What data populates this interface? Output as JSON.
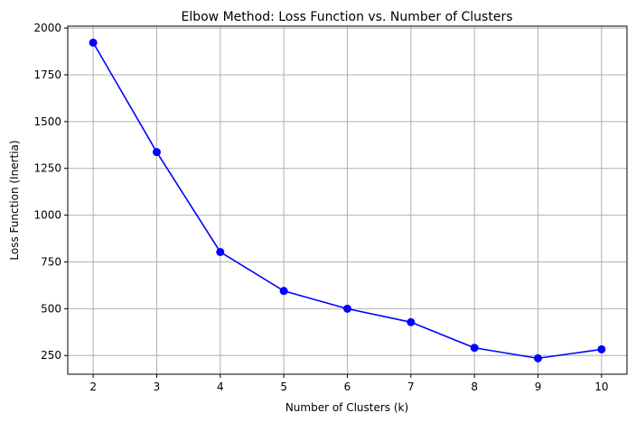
{
  "chart_data": {
    "type": "line",
    "title": "Elbow Method: Loss Function vs. Number of Clusters",
    "xlabel": "Number of Clusters (k)",
    "ylabel": "Loss Function (Inertia)",
    "x": [
      2,
      3,
      4,
      5,
      6,
      7,
      8,
      9,
      10
    ],
    "series": [
      {
        "values": [
          1922,
          1337,
          803,
          595,
          500,
          428,
          291,
          235,
          283
        ],
        "color": "#0000ff",
        "marker": "circle"
      }
    ],
    "xticks": [
      "2",
      "3",
      "4",
      "5",
      "6",
      "7",
      "8",
      "9",
      "10"
    ],
    "yticks": [
      "250",
      "500",
      "750",
      "1000",
      "1250",
      "1500",
      "1750",
      "2000"
    ],
    "xlim": [
      1.6,
      10.4
    ],
    "ylim": [
      150,
      2010
    ],
    "grid": true,
    "legend": "none"
  }
}
